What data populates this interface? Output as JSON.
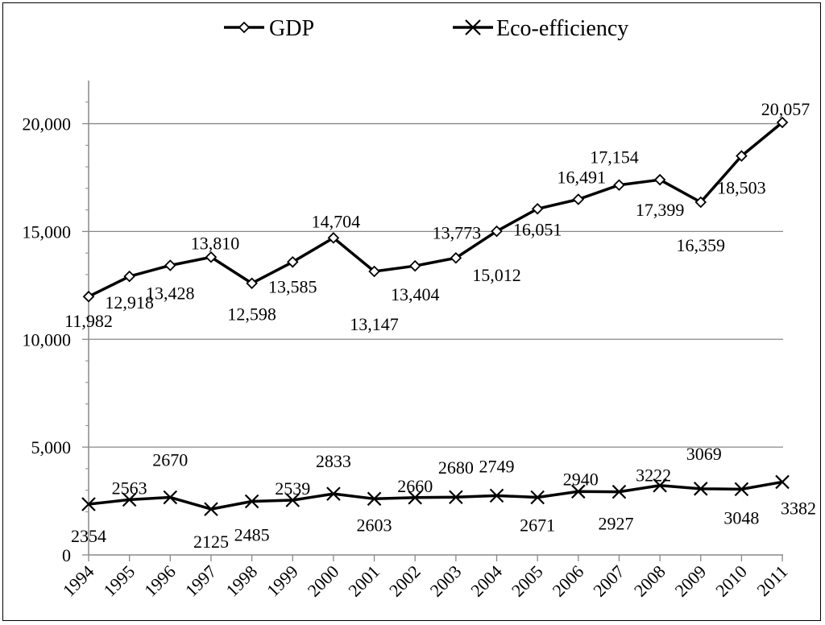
{
  "chart_data": {
    "type": "line",
    "title": "",
    "xlabel": "",
    "ylabel": "",
    "ylim": [
      0,
      22000
    ],
    "y_ticks": [
      0,
      5000,
      10000,
      15000,
      20000
    ],
    "y_tick_labels": [
      "0",
      "5,000",
      "10,000",
      "15,000",
      "20,000"
    ],
    "grid": "horizontal",
    "legend_position": "top",
    "categories": [
      "1994",
      "1995",
      "1996",
      "1997",
      "1998",
      "1999",
      "2000",
      "2001",
      "2002",
      "2003",
      "2004",
      "2005",
      "2006",
      "2007",
      "2008",
      "2009",
      "2010",
      "2011"
    ],
    "series": [
      {
        "name": "GDP",
        "marker": "diamond",
        "values": [
          11982,
          12918,
          13428,
          13810,
          12598,
          13585,
          14704,
          13147,
          13404,
          13773,
          15012,
          16051,
          16491,
          17154,
          17399,
          16359,
          18503,
          20057
        ],
        "labels": [
          "11,982",
          "12,918",
          "13,428",
          "13,810",
          "12,598",
          "13,585",
          "14,704",
          "13,147",
          "13,404",
          "13,773",
          "15,012",
          "16,051",
          "16,491",
          "17,154",
          "17,399",
          "16,359",
          "18,503",
          "20,057"
        ]
      },
      {
        "name": "Eco-efficiency",
        "marker": "x",
        "values": [
          2354,
          2563,
          2670,
          2125,
          2485,
          2539,
          2833,
          2603,
          2660,
          2680,
          2749,
          2671,
          2940,
          2927,
          3222,
          3069,
          3048,
          3382
        ],
        "labels": [
          "2354",
          "2563",
          "2670",
          "2125",
          "2485",
          "2539",
          "2833",
          "2603",
          "2660",
          "2680",
          "2749",
          "2671",
          "2940",
          "2927",
          "3222",
          "3069",
          "3048",
          "3382"
        ]
      }
    ]
  }
}
